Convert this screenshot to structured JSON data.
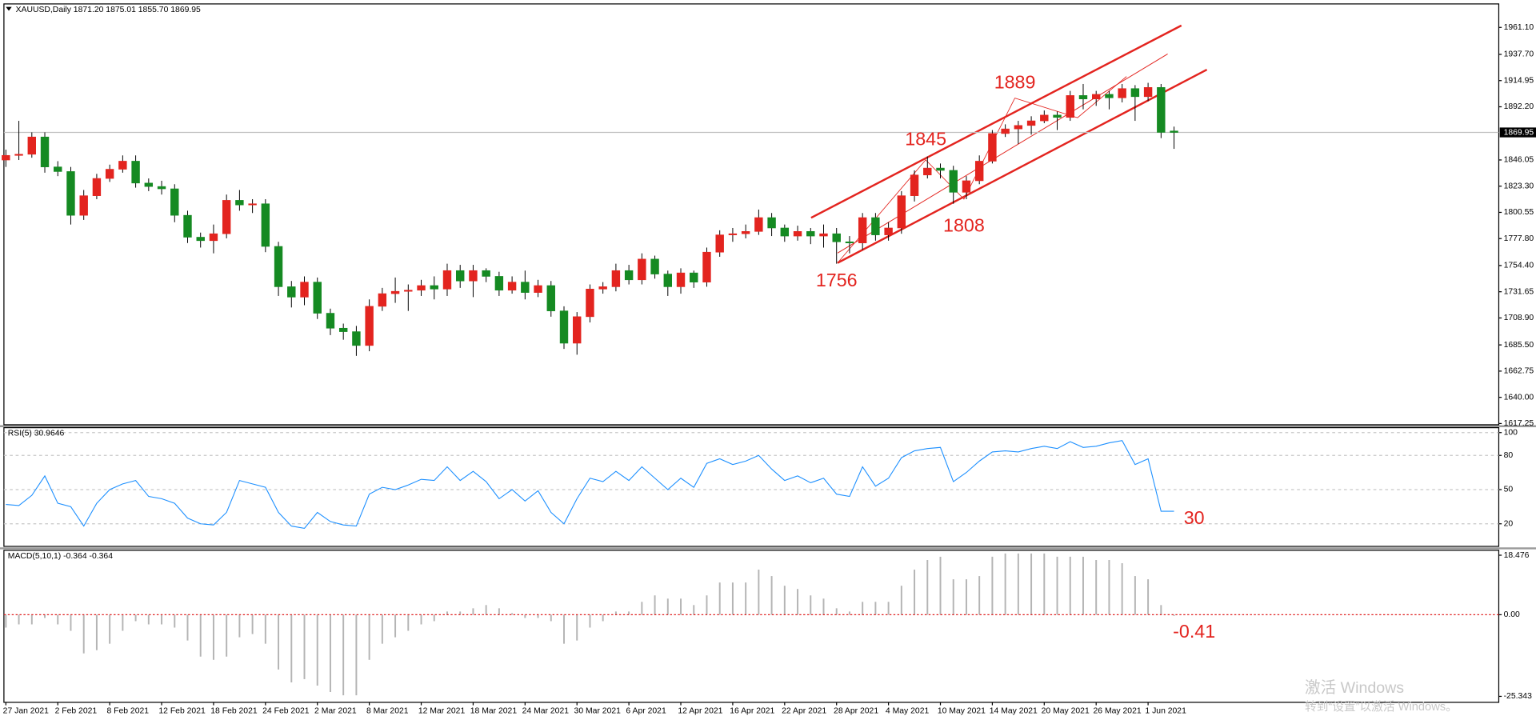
{
  "chart_data": [
    {
      "type": "candlestick",
      "title": "XAUUSD,Daily  1871.20 1875.01 1855.70 1869.95",
      "categories": [
        "27 Jan 2021",
        null,
        null,
        null,
        "2 Feb 2021",
        null,
        null,
        null,
        "8 Feb 2021",
        null,
        null,
        null,
        "12 Feb 2021",
        null,
        null,
        null,
        "18 Feb 2021",
        null,
        null,
        null,
        "24 Feb 2021",
        null,
        null,
        null,
        "2 Mar 2021",
        null,
        null,
        null,
        "8 Mar 2021",
        null,
        null,
        null,
        "12 Mar 2021",
        null,
        null,
        null,
        "18 Mar 2021",
        null,
        null,
        null,
        "24 Mar 2021",
        null,
        null,
        null,
        "30 Mar 2021",
        null,
        null,
        null,
        "6 Apr 2021",
        null,
        null,
        null,
        "12 Apr 2021",
        null,
        null,
        null,
        "16 Apr 2021",
        null,
        null,
        null,
        "22 Apr 2021",
        null,
        null,
        null,
        "28 Apr 2021",
        null,
        null,
        null,
        "4 May 2021",
        null,
        null,
        null,
        "10 May 2021",
        null,
        null,
        null,
        "14 May 2021",
        null,
        null,
        null,
        "20 May 2021",
        null,
        null,
        null,
        "26 May 2021",
        null,
        null,
        null,
        "1 Jun 2021",
        null,
        null
      ],
      "open": [
        1846,
        1850,
        1851,
        1866,
        1840,
        1836,
        1798,
        1815,
        1830,
        1838,
        1845,
        1826,
        1823,
        1821,
        1798,
        1779,
        1776,
        1782,
        1811,
        1807,
        1808,
        1771,
        1736,
        1727,
        1740,
        1713,
        1700,
        1697,
        1685,
        1719,
        1730,
        1732,
        1733,
        1737,
        1734,
        1750,
        1741,
        1750,
        1745,
        1733,
        1740,
        1731,
        1737,
        1715,
        1687,
        1710,
        1734,
        1736,
        1750,
        1742,
        1760,
        1747,
        1736,
        1748,
        1740,
        1766,
        1781,
        1782,
        1784,
        1796,
        1787,
        1780,
        1784,
        1780,
        1782,
        1775,
        1774,
        1796,
        1781,
        1787,
        1815,
        1833,
        1839,
        1837,
        1818,
        1828,
        1845,
        1869,
        1873,
        1876,
        1880,
        1885,
        1883,
        1902,
        1899,
        1903,
        1900,
        1908,
        1901,
        1909,
        1871.2
      ],
      "high": [
        1855,
        1880,
        1870,
        1870,
        1845,
        1840,
        1820,
        1834,
        1842,
        1850,
        1850,
        1830,
        1828,
        1825,
        1802,
        1783,
        1790,
        1816,
        1820,
        1812,
        1812,
        1775,
        1741,
        1745,
        1744,
        1717,
        1704,
        1702,
        1725,
        1735,
        1744,
        1738,
        1742,
        1745,
        1756,
        1755,
        1755,
        1752,
        1749,
        1745,
        1750,
        1742,
        1741,
        1719,
        1714,
        1738,
        1740,
        1756,
        1755,
        1765,
        1763,
        1750,
        1752,
        1750,
        1770,
        1785,
        1787,
        1790,
        1803,
        1800,
        1790,
        1789,
        1787,
        1790,
        1787,
        1780,
        1800,
        1800,
        1792,
        1819,
        1837,
        1849,
        1843,
        1841,
        1832,
        1850,
        1872,
        1877,
        1880,
        1884,
        1889,
        1888,
        1906,
        1912,
        1906,
        1906,
        1912,
        1911,
        1913,
        1912,
        1875.01
      ],
      "low": [
        1840,
        1846,
        1848,
        1835,
        1832,
        1790,
        1794,
        1812,
        1827,
        1835,
        1822,
        1819,
        1816,
        1792,
        1774,
        1770,
        1765,
        1778,
        1802,
        1800,
        1766,
        1728,
        1718,
        1720,
        1708,
        1694,
        1690,
        1676,
        1680,
        1715,
        1722,
        1715,
        1728,
        1725,
        1728,
        1735,
        1727,
        1740,
        1728,
        1730,
        1725,
        1727,
        1710,
        1682,
        1677,
        1705,
        1730,
        1732,
        1738,
        1738,
        1743,
        1728,
        1730,
        1735,
        1736,
        1762,
        1775,
        1778,
        1781,
        1780,
        1775,
        1776,
        1773,
        1770,
        1756,
        1765,
        1768,
        1776,
        1776,
        1782,
        1810,
        1830,
        1830,
        1808,
        1812,
        1825,
        1843,
        1866,
        1860,
        1868,
        1878,
        1872,
        1880,
        1890,
        1893,
        1890,
        1896,
        1880,
        1897,
        1865,
        1855.7
      ],
      "close": [
        1850,
        1851,
        1866,
        1840,
        1836,
        1798,
        1815,
        1830,
        1838,
        1845,
        1826,
        1823,
        1821,
        1798,
        1779,
        1776,
        1782,
        1811,
        1807,
        1808,
        1771,
        1736,
        1727,
        1740,
        1713,
        1700,
        1697,
        1685,
        1719,
        1730,
        1732,
        1733,
        1737,
        1734,
        1750,
        1741,
        1750,
        1745,
        1733,
        1740,
        1731,
        1737,
        1715,
        1687,
        1710,
        1734,
        1736,
        1750,
        1742,
        1760,
        1747,
        1736,
        1748,
        1740,
        1766,
        1781,
        1782,
        1784,
        1796,
        1787,
        1780,
        1784,
        1780,
        1782,
        1775,
        1774,
        1796,
        1781,
        1787,
        1815,
        1833,
        1839,
        1837,
        1818,
        1828,
        1845,
        1869,
        1873,
        1876,
        1880,
        1885,
        1883,
        1902,
        1899,
        1903,
        1900,
        1908,
        1901,
        1909,
        1870,
        1869.95
      ],
      "up_color": "#e3241f",
      "down_color": "#158a22",
      "last_price": 1869.95,
      "ylim": [
        1616.2,
        1981.5
      ],
      "yticks": [
        {
          "value": 1961.1,
          "label": "1961.10"
        },
        {
          "value": 1937.7,
          "label": "1937.70"
        },
        1914.95,
        {
          "value": 1892.2,
          "label": "1892.20"
        },
        1846.05,
        {
          "value": 1823.3,
          "label": "1823.30"
        },
        1800.55,
        {
          "value": 1777.8,
          "label": "1777.80"
        },
        {
          "value": 1754.4,
          "label": "1754.40"
        },
        1731.65,
        {
          "value": 1708.9,
          "label": "1708.90"
        },
        {
          "value": 1685.5,
          "label": "1685.50"
        },
        1662.75,
        {
          "value": 1640,
          "label": "1640.00"
        },
        1617.25
      ],
      "grid": false,
      "annotations": [
        "1756",
        "1845",
        "1808",
        "1889"
      ]
    },
    {
      "type": "line",
      "title": "RSI(5) 30.9646",
      "color": "#1e90ff",
      "values": [
        37,
        36,
        45,
        62,
        38,
        35,
        18,
        38,
        50,
        55,
        58,
        44,
        42,
        38,
        25,
        20,
        19,
        30,
        58,
        55,
        52,
        30,
        18,
        16,
        30,
        22,
        19,
        18,
        46,
        52,
        50,
        54,
        59,
        58,
        70,
        58,
        66,
        57,
        42,
        50,
        40,
        49,
        30,
        20,
        42,
        60,
        57,
        66,
        58,
        70,
        60,
        50,
        60,
        52,
        73,
        77,
        72,
        75,
        80,
        68,
        58,
        62,
        56,
        60,
        46,
        44,
        70,
        53,
        60,
        78,
        84,
        86,
        87,
        57,
        65,
        75,
        83,
        84,
        83,
        86,
        88,
        86,
        92,
        87,
        88,
        91,
        93,
        72,
        77,
        31,
        31
      ],
      "ylim": [
        0.2,
        104.3
      ],
      "yticks": [
        100,
        80,
        50,
        20
      ],
      "grid": true,
      "annotations": [
        "30"
      ]
    },
    {
      "type": "bar",
      "title": "MACD(5,10,1) -0.364 -0.364",
      "color": "#b4b4b4",
      "values": [
        -4,
        -3,
        -3,
        -1,
        -3,
        -5,
        -12,
        -11,
        -9,
        -5,
        -2,
        -3,
        -3,
        -4,
        -8,
        -13,
        -14,
        -13,
        -7,
        -6,
        -9,
        -17,
        -21,
        -20,
        -22,
        -24,
        -25,
        -25,
        -14,
        -9,
        -7,
        -5,
        -3,
        -2,
        1,
        1,
        2,
        3,
        2,
        0.5,
        -1,
        -1,
        -2,
        -9,
        -8,
        -4,
        -2,
        1,
        1,
        4,
        6,
        5,
        5,
        3,
        6,
        10,
        10,
        10,
        14,
        12,
        9,
        8,
        6,
        5,
        2,
        1,
        4,
        4,
        4,
        9,
        14,
        17,
        18,
        11,
        11,
        12,
        18,
        19,
        19,
        19,
        19,
        18,
        18,
        18,
        17,
        17,
        16,
        12,
        11,
        3,
        -0.364
      ],
      "ylim": [
        -27.2,
        20
      ],
      "yticks": [
        18.476,
        {
          "value": 0,
          "label": "0.00"
        },
        -25.343
      ],
      "zero_color": "#e02020",
      "annotations": [
        "-0.41"
      ]
    }
  ],
  "watermark": [
    "激活 Windows",
    "转到“设置”以激活 Windows。"
  ]
}
